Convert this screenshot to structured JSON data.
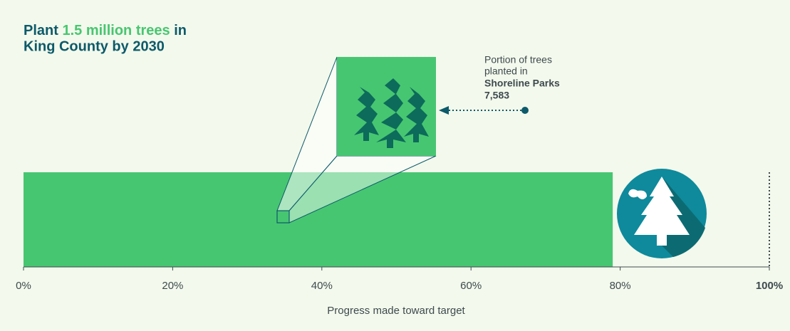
{
  "chart_data": {
    "type": "bar",
    "title": {
      "start": "Plant",
      "highlight": "1.5 million trees",
      "end": "in",
      "line2": "King County by 2030"
    },
    "categories": [
      null
    ],
    "values": [
      79
    ],
    "color": "#47c671",
    "xlim": [
      0,
      100
    ],
    "xticks": [
      {
        "value": 0,
        "label": "0%"
      },
      {
        "value": 20,
        "label": "20%"
      },
      {
        "value": 40,
        "label": "40%"
      },
      {
        "value": 60,
        "label": "60%"
      },
      {
        "value": 80,
        "label": "80%"
      },
      {
        "value": 100,
        "label": "100%"
      }
    ],
    "xlabel": "Progress made toward target",
    "annotation": {
      "lines": [
        "Portion of trees",
        "planted in"
      ],
      "name": "Shoreline Parks",
      "value": "7,583"
    }
  }
}
